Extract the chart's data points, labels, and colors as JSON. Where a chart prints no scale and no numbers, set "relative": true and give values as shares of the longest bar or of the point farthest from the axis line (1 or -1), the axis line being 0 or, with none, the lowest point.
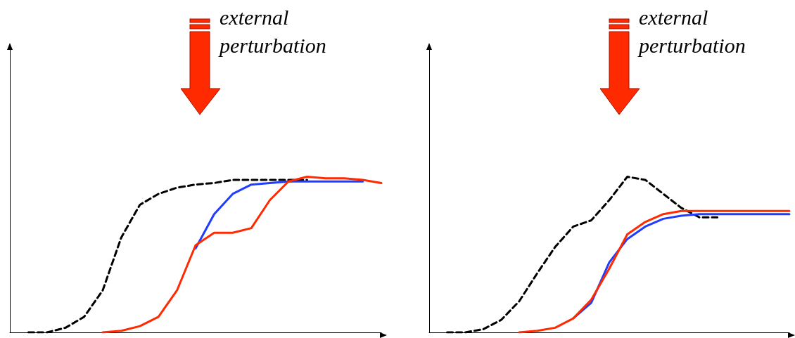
{
  "chart_data": [
    {
      "type": "line",
      "relative": true,
      "annotations": [
        "external perturbation"
      ],
      "grid": false,
      "marker": "none",
      "categories": [
        null,
        null,
        null,
        null,
        null,
        null,
        null,
        null,
        null,
        null,
        null,
        null,
        null,
        null,
        null,
        null,
        null,
        null,
        null,
        null,
        null
      ],
      "series": [
        {
          "color": "#000000",
          "line_style": "dashed",
          "values": [
            null,
            0,
            0,
            0.03,
            0.1,
            0.27,
            0.61,
            0.82,
            0.89,
            0.93,
            0.95,
            0.96,
            0.98,
            0.98,
            0.98,
            0.98,
            0.98,
            null,
            null,
            null,
            null
          ]
        },
        {
          "color": "#1f3cff",
          "line_style": "solid",
          "values": [
            null,
            null,
            null,
            null,
            null,
            null,
            null,
            null,
            null,
            null,
            0.54,
            0.76,
            0.89,
            0.95,
            0.96,
            0.97,
            0.97,
            0.97,
            0.97,
            0.97,
            null
          ]
        },
        {
          "color": "#ff2a00",
          "line_style": "solid",
          "values": [
            null,
            null,
            null,
            null,
            null,
            0,
            0.01,
            0.04,
            0.1,
            0.27,
            0.56,
            0.64,
            0.64,
            0.67,
            0.85,
            0.97,
            1,
            0.99,
            0.99,
            0.98,
            0.96
          ]
        }
      ]
    },
    {
      "type": "line",
      "relative": true,
      "annotations": [
        "external perturbation"
      ],
      "grid": false,
      "marker": "none",
      "categories": [
        null,
        null,
        null,
        null,
        null,
        null,
        null,
        null,
        null,
        null,
        null,
        null,
        null,
        null,
        null,
        null,
        null,
        null,
        null,
        null,
        null
      ],
      "series": [
        {
          "color": "#000000",
          "line_style": "dashed",
          "values": [
            null,
            0,
            0,
            0.02,
            0.08,
            0.2,
            0.38,
            0.55,
            0.68,
            0.72,
            0.85,
            1,
            0.98,
            0.89,
            0.8,
            0.74,
            0.74,
            null,
            null,
            null,
            null
          ]
        },
        {
          "color": "#1f3cff",
          "line_style": "solid",
          "values": [
            null,
            null,
            null,
            null,
            null,
            null,
            null,
            null,
            0.09,
            0.19,
            0.45,
            0.6,
            0.68,
            0.73,
            0.75,
            0.76,
            0.76,
            0.76,
            0.76,
            0.76,
            0.76
          ]
        },
        {
          "color": "#ff2a00",
          "line_style": "solid",
          "values": [
            null,
            null,
            null,
            null,
            null,
            0,
            0.01,
            0.03,
            0.09,
            0.21,
            0.41,
            0.63,
            0.71,
            0.76,
            0.78,
            0.78,
            0.78,
            0.78,
            0.78,
            0.78,
            0.78
          ]
        }
      ]
    }
  ]
}
